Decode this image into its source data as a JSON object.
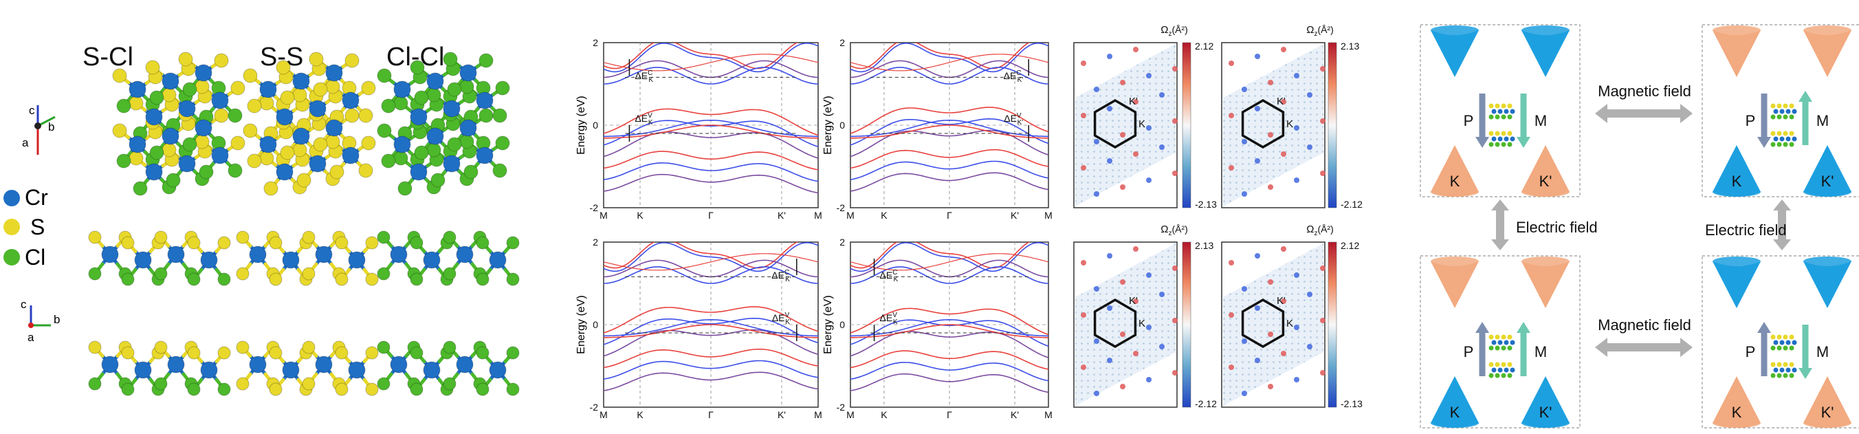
{
  "structures": {
    "configs": [
      "S-Cl",
      "S-S",
      "Cl-Cl"
    ],
    "legend": [
      {
        "label": "Cr",
        "color": "#1f6fc5"
      },
      {
        "label": "S",
        "color": "#e8d82a"
      },
      {
        "label": "Cl",
        "color": "#4cb82a"
      }
    ],
    "axes_top": {
      "c": "c",
      "b": "b",
      "a": "a"
    },
    "axes_bottom": {
      "c": "c",
      "b": "b",
      "a": "a"
    }
  },
  "bands": {
    "ylabel": "Energy (eV)",
    "yticks": [
      "2",
      "0",
      "-2"
    ],
    "xticks": [
      "M",
      "K",
      "Γ",
      "K'",
      "M"
    ],
    "panels": [
      {
        "id": "tl",
        "gap_c": "ΔE",
        "gap_c_sub": "K",
        "gap_c_sup": "C",
        "gap_v": "ΔE",
        "gap_v_sub": "K",
        "gap_v_sup": "V"
      },
      {
        "id": "tr",
        "gap_c": "ΔE",
        "gap_c_sub": "K'",
        "gap_c_sup": "C",
        "gap_v": "ΔE",
        "gap_v_sub": "K'",
        "gap_v_sup": "V"
      },
      {
        "id": "bl",
        "gap_c": "ΔE",
        "gap_c_sub": "K'",
        "gap_c_sup": "C",
        "gap_v": "ΔE",
        "gap_v_sub": "K'",
        "gap_v_sup": "V"
      },
      {
        "id": "br",
        "gap_c": "ΔE",
        "gap_c_sub": "K",
        "gap_c_sup": "C",
        "gap_v": "ΔE",
        "gap_v_sub": "K",
        "gap_v_sup": "V"
      }
    ],
    "colors": {
      "spin_up": "#e8413c",
      "spin_down": "#3c4ee8",
      "mixed": "#7a4aa0"
    }
  },
  "berry": {
    "title": "Ω",
    "title_sub": "z",
    "title_unit": "(Å²)",
    "panels": [
      {
        "id": "b1",
        "max": "2.12",
        "min": "-2.13"
      },
      {
        "id": "b2",
        "max": "2.13",
        "min": "-2.12"
      },
      {
        "id": "b3",
        "max": "2.13",
        "min": "-2.12"
      },
      {
        "id": "b4",
        "max": "2.12",
        "min": "-2.13"
      }
    ],
    "valley_labels": {
      "k": "K",
      "kp": "K'"
    }
  },
  "schematic": {
    "magnetic_field": "Magnetic field",
    "electric_field": "Electric field",
    "p_label": "P",
    "m_label": "M",
    "k_label": "K",
    "kp_label": "K'",
    "colors": {
      "blue": "#1da0e0",
      "orange": "#f2aa80",
      "p_arrow": "#7d8fb0",
      "m_arrow": "#6dc8b0",
      "big_arrow": "#b0b0b0"
    }
  }
}
